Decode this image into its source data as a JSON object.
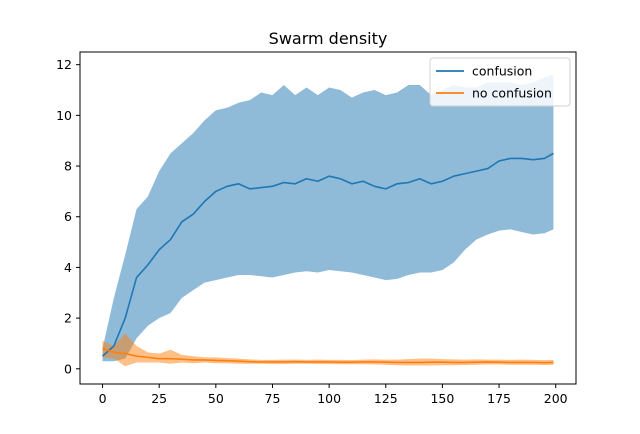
{
  "chart_data": {
    "type": "line",
    "title": "Swarm density",
    "xlabel": "",
    "ylabel": "",
    "xlim": [
      -9.95,
      208.95
    ],
    "ylim": [
      -0.6,
      12.5
    ],
    "xticks": [
      0,
      25,
      50,
      75,
      100,
      125,
      150,
      175,
      200
    ],
    "yticks": [
      0,
      2,
      4,
      6,
      8,
      10,
      12
    ],
    "grid": false,
    "legend": "top-right",
    "series": [
      {
        "name": "confusion",
        "color": "#1f77b4",
        "band_color": "#1f77b4",
        "x": [
          0,
          5,
          10,
          15,
          20,
          25,
          30,
          35,
          40,
          45,
          50,
          55,
          60,
          65,
          70,
          75,
          80,
          85,
          90,
          95,
          100,
          105,
          110,
          115,
          120,
          125,
          130,
          135,
          140,
          145,
          150,
          155,
          160,
          165,
          170,
          175,
          180,
          185,
          190,
          195,
          199
        ],
        "mean": [
          0.5,
          0.9,
          2.0,
          3.6,
          4.1,
          4.7,
          5.1,
          5.8,
          6.1,
          6.6,
          7.0,
          7.2,
          7.3,
          7.1,
          7.15,
          7.2,
          7.35,
          7.3,
          7.5,
          7.4,
          7.6,
          7.5,
          7.3,
          7.4,
          7.2,
          7.1,
          7.3,
          7.35,
          7.5,
          7.3,
          7.4,
          7.6,
          7.7,
          7.8,
          7.9,
          8.2,
          8.3,
          8.3,
          8.25,
          8.3,
          8.5
        ],
        "upper": [
          0.8,
          2.8,
          4.5,
          6.3,
          6.8,
          7.8,
          8.5,
          8.9,
          9.3,
          9.8,
          10.2,
          10.3,
          10.5,
          10.6,
          10.9,
          10.8,
          11.2,
          10.8,
          11.1,
          10.8,
          11.1,
          11.0,
          10.7,
          10.9,
          11.0,
          10.8,
          10.9,
          11.2,
          11.2,
          10.8,
          11.0,
          11.2,
          11.1,
          11.1,
          11.3,
          11.3,
          11.3,
          11.2,
          11.3,
          11.5,
          11.6
        ],
        "lower": [
          0.3,
          0.3,
          0.4,
          1.2,
          1.7,
          2.0,
          2.2,
          2.8,
          3.1,
          3.4,
          3.5,
          3.6,
          3.7,
          3.7,
          3.65,
          3.6,
          3.7,
          3.8,
          3.85,
          3.8,
          3.9,
          3.85,
          3.8,
          3.7,
          3.6,
          3.5,
          3.55,
          3.7,
          3.8,
          3.8,
          3.9,
          4.2,
          4.7,
          5.1,
          5.3,
          5.45,
          5.5,
          5.4,
          5.3,
          5.35,
          5.5
        ]
      },
      {
        "name": "no confusion",
        "color": "#ff7f0e",
        "band_color": "#ff7f0e",
        "x": [
          0,
          5,
          10,
          15,
          20,
          25,
          30,
          35,
          40,
          45,
          50,
          55,
          60,
          65,
          70,
          75,
          80,
          85,
          90,
          95,
          100,
          105,
          110,
          115,
          120,
          125,
          130,
          135,
          140,
          145,
          150,
          155,
          160,
          165,
          170,
          175,
          180,
          185,
          190,
          195,
          199
        ],
        "mean": [
          0.8,
          0.65,
          0.6,
          0.5,
          0.45,
          0.4,
          0.4,
          0.38,
          0.35,
          0.35,
          0.33,
          0.32,
          0.3,
          0.28,
          0.27,
          0.27,
          0.27,
          0.28,
          0.27,
          0.27,
          0.27,
          0.26,
          0.26,
          0.27,
          0.27,
          0.26,
          0.25,
          0.25,
          0.25,
          0.26,
          0.26,
          0.25,
          0.25,
          0.26,
          0.27,
          0.26,
          0.25,
          0.25,
          0.25,
          0.24,
          0.25
        ],
        "upper": [
          1.1,
          0.9,
          1.4,
          0.9,
          0.65,
          0.6,
          0.75,
          0.55,
          0.5,
          0.45,
          0.45,
          0.42,
          0.4,
          0.37,
          0.35,
          0.35,
          0.36,
          0.36,
          0.35,
          0.36,
          0.35,
          0.35,
          0.34,
          0.36,
          0.37,
          0.36,
          0.36,
          0.38,
          0.4,
          0.4,
          0.38,
          0.37,
          0.36,
          0.37,
          0.36,
          0.36,
          0.35,
          0.36,
          0.35,
          0.34,
          0.35
        ],
        "lower": [
          0.45,
          0.4,
          0.1,
          0.25,
          0.25,
          0.25,
          0.2,
          0.25,
          0.22,
          0.25,
          0.22,
          0.22,
          0.2,
          0.2,
          0.2,
          0.19,
          0.19,
          0.2,
          0.2,
          0.19,
          0.19,
          0.18,
          0.18,
          0.18,
          0.17,
          0.16,
          0.14,
          0.13,
          0.13,
          0.13,
          0.14,
          0.14,
          0.15,
          0.16,
          0.17,
          0.17,
          0.16,
          0.16,
          0.16,
          0.15,
          0.16
        ]
      }
    ]
  }
}
